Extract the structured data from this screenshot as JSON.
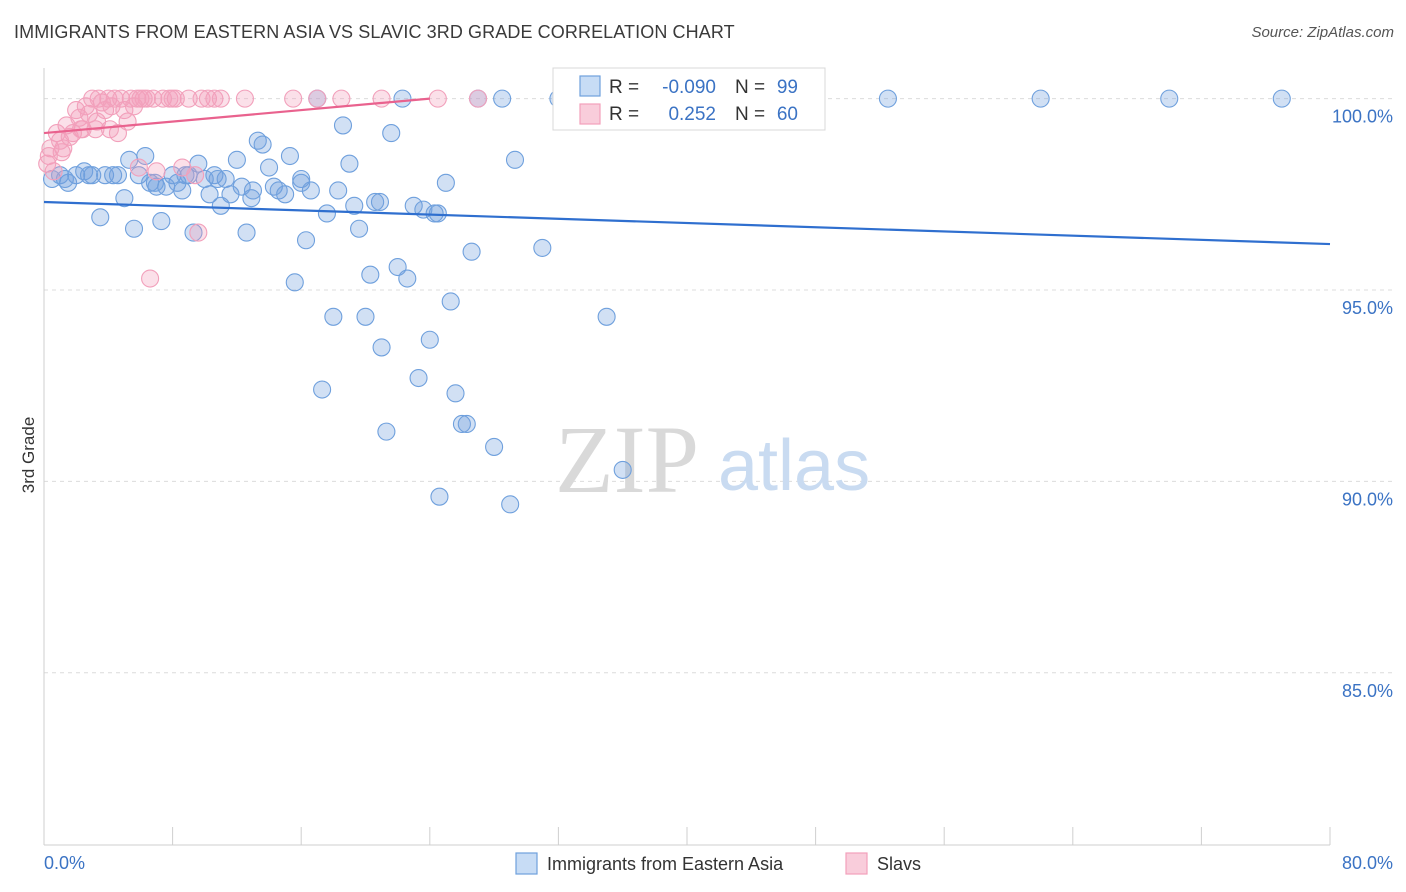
{
  "title": "IMMIGRANTS FROM EASTERN ASIA VS SLAVIC 3RD GRADE CORRELATION CHART",
  "source": "Source: ZipAtlas.com",
  "watermark": {
    "zip": "ZIP",
    "atlas": "atlas"
  },
  "chart_data": {
    "type": "scatter",
    "title": "IMMIGRANTS FROM EASTERN ASIA VS SLAVIC 3RD GRADE CORRELATION CHART",
    "xlabel": "",
    "ylabel": "3rd Grade",
    "xlim": [
      0,
      80
    ],
    "ylim": [
      80.5,
      100.8
    ],
    "x_tick_labels": {
      "min": "0.0%",
      "max": "80.0%"
    },
    "y_ticks": [
      {
        "value": 100,
        "label": "100.0%"
      },
      {
        "value": 95,
        "label": "95.0%"
      },
      {
        "value": 90,
        "label": "90.0%"
      },
      {
        "value": 85,
        "label": "85.0%"
      }
    ],
    "grid": true,
    "colors": {
      "blue": "#6fa0dd",
      "blue_line": "#2f6fcf",
      "pink": "#f2a0bb",
      "pink_line": "#e9628e",
      "tick": "#3b73c4"
    },
    "legend": {
      "rows": [
        {
          "r_label": "R =",
          "r_value": "-0.090",
          "n_label": "N =",
          "n_value": "99"
        },
        {
          "r_label": "R =",
          "r_value": "0.252",
          "n_label": "N =",
          "n_value": "60"
        }
      ]
    },
    "series": [
      {
        "name": "Immigrants from Eastern Asia",
        "color": "#6fa0dd",
        "trend": {
          "x0": 0,
          "y0": 97.3,
          "x1": 80,
          "y1": 96.2
        },
        "points": [
          [
            0.5,
            97.9
          ],
          [
            1.0,
            98.0
          ],
          [
            1.5,
            97.8
          ],
          [
            2.0,
            98.0
          ],
          [
            2.5,
            98.1
          ],
          [
            3.0,
            98.0
          ],
          [
            3.5,
            96.9
          ],
          [
            3.8,
            98.0
          ],
          [
            4.3,
            98.0
          ],
          [
            4.6,
            98.0
          ],
          [
            5.0,
            97.4
          ],
          [
            5.3,
            98.4
          ],
          [
            5.6,
            96.6
          ],
          [
            5.9,
            98.0
          ],
          [
            6.3,
            98.5
          ],
          [
            6.6,
            97.8
          ],
          [
            7.0,
            97.7
          ],
          [
            7.3,
            96.8
          ],
          [
            7.6,
            97.7
          ],
          [
            8.0,
            98.0
          ],
          [
            8.3,
            97.8
          ],
          [
            8.6,
            97.6
          ],
          [
            9.0,
            98.0
          ],
          [
            9.3,
            96.5
          ],
          [
            9.6,
            98.3
          ],
          [
            10.0,
            97.9
          ],
          [
            10.3,
            97.5
          ],
          [
            10.6,
            98.0
          ],
          [
            11.0,
            97.2
          ],
          [
            11.3,
            97.9
          ],
          [
            11.6,
            97.5
          ],
          [
            12.0,
            98.4
          ],
          [
            12.3,
            97.7
          ],
          [
            12.6,
            96.5
          ],
          [
            12.9,
            97.4
          ],
          [
            13.3,
            98.9
          ],
          [
            13.6,
            98.8
          ],
          [
            14.0,
            98.2
          ],
          [
            14.3,
            97.7
          ],
          [
            14.6,
            97.6
          ],
          [
            15.0,
            97.5
          ],
          [
            15.3,
            98.5
          ],
          [
            15.6,
            95.2
          ],
          [
            16.0,
            97.9
          ],
          [
            16.3,
            96.3
          ],
          [
            16.6,
            97.6
          ],
          [
            17.0,
            100.0
          ],
          [
            17.3,
            92.4
          ],
          [
            17.6,
            97.0
          ],
          [
            18.0,
            94.3
          ],
          [
            18.3,
            97.6
          ],
          [
            18.6,
            99.3
          ],
          [
            19.0,
            98.3
          ],
          [
            19.3,
            97.2
          ],
          [
            19.6,
            96.6
          ],
          [
            20.0,
            94.3
          ],
          [
            20.3,
            95.4
          ],
          [
            20.6,
            97.3
          ],
          [
            21.0,
            93.5
          ],
          [
            21.3,
            91.3
          ],
          [
            21.6,
            99.1
          ],
          [
            22.0,
            95.6
          ],
          [
            22.3,
            100.0
          ],
          [
            22.6,
            95.3
          ],
          [
            23.0,
            97.2
          ],
          [
            23.3,
            92.7
          ],
          [
            23.6,
            97.1
          ],
          [
            24.0,
            93.7
          ],
          [
            24.3,
            97.0
          ],
          [
            24.6,
            89.6
          ],
          [
            25.0,
            97.8
          ],
          [
            25.3,
            94.7
          ],
          [
            25.6,
            92.3
          ],
          [
            26.0,
            91.5
          ],
          [
            26.3,
            91.5
          ],
          [
            26.6,
            96.0
          ],
          [
            27.0,
            100.0
          ],
          [
            28.0,
            90.9
          ],
          [
            28.5,
            100.0
          ],
          [
            29.0,
            89.4
          ],
          [
            29.3,
            98.4
          ],
          [
            31.0,
            96.1
          ],
          [
            32.0,
            100.0
          ],
          [
            35.0,
            94.3
          ],
          [
            36.0,
            90.3
          ],
          [
            39.0,
            100.0
          ],
          [
            52.5,
            100.0
          ],
          [
            62.0,
            100.0
          ],
          [
            70.0,
            100.0
          ],
          [
            77.0,
            100.0
          ],
          [
            24.5,
            97.0
          ],
          [
            16.0,
            97.8
          ],
          [
            1.3,
            97.9
          ],
          [
            2.8,
            98.0
          ],
          [
            6.9,
            97.8
          ],
          [
            8.8,
            98.0
          ],
          [
            10.8,
            97.9
          ],
          [
            13.0,
            97.6
          ],
          [
            20.9,
            97.3
          ]
        ]
      },
      {
        "name": "Slavs",
        "color": "#f2a0bb",
        "trend": {
          "x0": 0,
          "y0": 99.1,
          "x1": 24.0,
          "y1": 100.0
        },
        "points": [
          [
            0.2,
            98.3
          ],
          [
            0.4,
            98.7
          ],
          [
            0.6,
            98.1
          ],
          [
            0.8,
            99.1
          ],
          [
            1.0,
            98.9
          ],
          [
            1.2,
            98.7
          ],
          [
            1.4,
            99.3
          ],
          [
            1.6,
            99.0
          ],
          [
            1.8,
            99.1
          ],
          [
            2.0,
            99.7
          ],
          [
            2.2,
            99.5
          ],
          [
            2.4,
            99.2
          ],
          [
            2.6,
            99.8
          ],
          [
            2.8,
            99.6
          ],
          [
            3.0,
            100.0
          ],
          [
            3.2,
            99.2
          ],
          [
            3.4,
            100.0
          ],
          [
            3.6,
            99.9
          ],
          [
            3.8,
            99.7
          ],
          [
            4.0,
            100.0
          ],
          [
            4.2,
            99.8
          ],
          [
            4.4,
            100.0
          ],
          [
            4.6,
            99.1
          ],
          [
            4.8,
            100.0
          ],
          [
            5.0,
            99.7
          ],
          [
            5.2,
            99.4
          ],
          [
            5.4,
            100.0
          ],
          [
            5.6,
            99.8
          ],
          [
            5.8,
            100.0
          ],
          [
            6.0,
            100.0
          ],
          [
            6.2,
            100.0
          ],
          [
            6.4,
            100.0
          ],
          [
            6.6,
            95.3
          ],
          [
            6.8,
            100.0
          ],
          [
            7.0,
            98.1
          ],
          [
            7.4,
            100.0
          ],
          [
            7.8,
            100.0
          ],
          [
            8.2,
            100.0
          ],
          [
            8.6,
            98.2
          ],
          [
            9.0,
            100.0
          ],
          [
            9.4,
            98.0
          ],
          [
            9.8,
            100.0
          ],
          [
            10.2,
            100.0
          ],
          [
            10.6,
            100.0
          ],
          [
            11.0,
            100.0
          ],
          [
            12.5,
            100.0
          ],
          [
            15.5,
            100.0
          ],
          [
            17.0,
            100.0
          ],
          [
            18.5,
            100.0
          ],
          [
            21.0,
            100.0
          ],
          [
            24.5,
            100.0
          ],
          [
            27.0,
            100.0
          ],
          [
            9.6,
            96.5
          ],
          [
            5.9,
            98.2
          ],
          [
            1.1,
            98.6
          ],
          [
            2.3,
            99.2
          ],
          [
            3.3,
            99.4
          ],
          [
            4.1,
            99.2
          ],
          [
            0.3,
            98.5
          ],
          [
            8.0,
            100.0
          ]
        ]
      }
    ],
    "bottom_legend": [
      "Immigrants from Eastern Asia",
      "Slavs"
    ]
  }
}
